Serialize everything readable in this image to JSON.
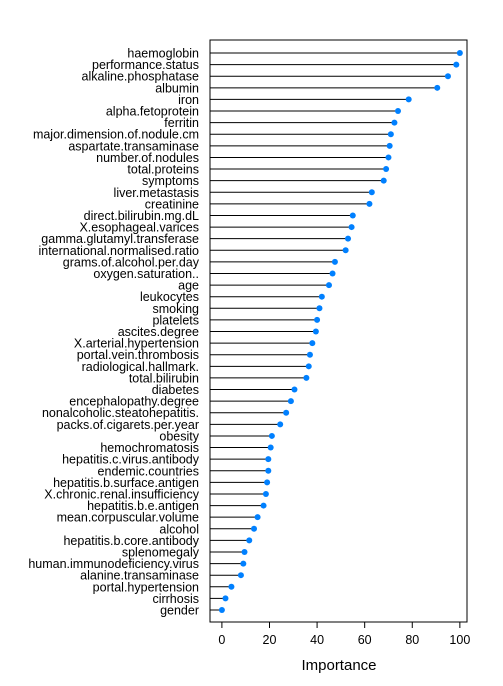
{
  "chart_data": {
    "type": "lollipop",
    "xlabel": "Importance",
    "xlim": [
      -5,
      103
    ],
    "xticks": [
      0,
      20,
      40,
      60,
      80,
      100
    ],
    "point_color": "#0080ff",
    "categories": [
      "haemoglobin",
      "performance.status",
      "alkaline.phosphatase",
      "albumin",
      "iron",
      "alpha.fetoprotein",
      "ferritin",
      "major.dimension.of.nodule.cm",
      "aspartate.transaminase",
      "number.of.nodules",
      "total.proteins",
      "symptoms",
      "liver.metastasis",
      "creatinine",
      "direct.bilirubin.mg.dL",
      "X.esophageal.varices",
      "gamma.glutamyl.transferase",
      "international.normalised.ratio",
      "grams.of.alcohol.per.day",
      "oxygen.saturation..",
      "age",
      "leukocytes",
      "smoking",
      "platelets",
      "ascites.degree",
      "X.arterial.hypertension",
      "portal.vein.thrombosis",
      "radiological.hallmark.",
      "total.bilirubin",
      "diabetes",
      "encephalopathy.degree",
      "nonalcoholic.steatohepatitis.",
      "packs.of.cigarets.per.year",
      "obesity",
      "hemochromatosis",
      "hepatitis.c.virus.antibody",
      "endemic.countries",
      "hepatitis.b.surface.antigen",
      "X.chronic.renal.insufficiency",
      "hepatitis.b.e.antigen",
      "mean.corpuscular.volume",
      "alcohol",
      "hepatitis.b.core.antibody",
      "splenomegaly",
      "human.immunodeficiency.virus",
      "alanine.transaminase",
      "portal.hypertension",
      "cirrhosis",
      "gender"
    ],
    "values": [
      100,
      98.5,
      95,
      90.5,
      78.5,
      74,
      72.5,
      71,
      70.5,
      70,
      69,
      68,
      63,
      62,
      55,
      54.5,
      53,
      52,
      47.5,
      46.5,
      45,
      42,
      41,
      40,
      39.5,
      38,
      37,
      36.5,
      35.5,
      30.5,
      29,
      27,
      24.5,
      21,
      20.5,
      19.5,
      19.5,
      19,
      18.5,
      17.5,
      15,
      13.5,
      11.5,
      9.5,
      9,
      8,
      4,
      1.5,
      0
    ]
  }
}
